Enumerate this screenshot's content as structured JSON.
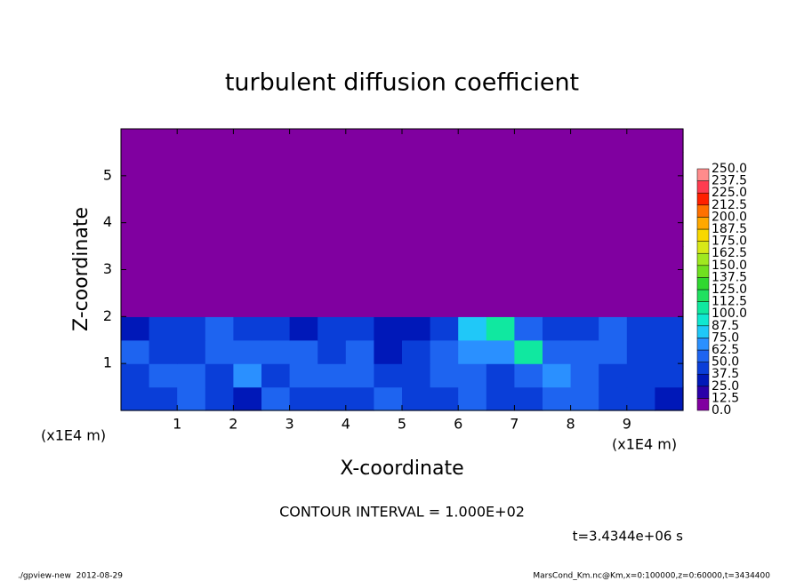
{
  "chart_data": {
    "type": "contour",
    "title": "turbulent diffusion coefficient",
    "xlabel": "X-coordinate",
    "ylabel": "Z-coordinate",
    "x_unit": "(x1E4 m)",
    "y_unit": "(x1E4 m)",
    "contour_note": "CONTOUR INTERVAL = 1.000E+02",
    "time_label": "t=3.4344e+06 s",
    "footer_left": "./gpview-new  2012-08-29",
    "footer_right": "MarsCond_Km.nc@Km,x=0:100000,z=0:60000,t=3434400",
    "xlim": [
      0,
      10
    ],
    "ylim": [
      0,
      6
    ],
    "xticks": [
      1,
      2,
      3,
      4,
      5,
      6,
      7,
      8,
      9
    ],
    "yticks": [
      1,
      2,
      3,
      4,
      5
    ],
    "levels": [
      {
        "value": 0,
        "label": "0.0"
      },
      {
        "value": 12.5,
        "label": "12.5"
      },
      {
        "value": 25,
        "label": "25.0"
      },
      {
        "value": 37.5,
        "label": "37.5"
      },
      {
        "value": 50,
        "label": "50.0"
      },
      {
        "value": 62.5,
        "label": "62.5"
      },
      {
        "value": 75,
        "label": "75.0"
      },
      {
        "value": 87.5,
        "label": "87.5"
      },
      {
        "value": 100,
        "label": "100.0"
      },
      {
        "value": 112.5,
        "label": "112.5"
      },
      {
        "value": 125,
        "label": "125.0"
      },
      {
        "value": 137.5,
        "label": "137.5"
      },
      {
        "value": 150,
        "label": "150.0"
      },
      {
        "value": 162.5,
        "label": "162.5"
      },
      {
        "value": 175,
        "label": "175.0"
      },
      {
        "value": 187.5,
        "label": "187.5"
      },
      {
        "value": 200,
        "label": "200.0"
      },
      {
        "value": 212.5,
        "label": "212.5"
      },
      {
        "value": 225,
        "label": "225.0"
      },
      {
        "value": 237.5,
        "label": "237.5"
      },
      {
        "value": 250,
        "label": "250.0"
      }
    ],
    "colors": [
      "#8000a0",
      "#2a00a8",
      "#0018b8",
      "#0a3ed8",
      "#1e64f0",
      "#2a90ff",
      "#20c8f8",
      "#10e8d0",
      "#10e8a0",
      "#20e060",
      "#30d830",
      "#70e020",
      "#a0e820",
      "#d8e818",
      "#f8d800",
      "#ffa800",
      "#ff7000",
      "#ff2000",
      "#ff3c50",
      "#ff8c8c"
    ],
    "field": [
      [
        40,
        45,
        55,
        40,
        35,
        50,
        45,
        40,
        45,
        50,
        40,
        45,
        50,
        40,
        45,
        55,
        60,
        45,
        40,
        35
      ],
      [
        45,
        60,
        55,
        45,
        70,
        45,
        50,
        60,
        50,
        40,
        45,
        55,
        50,
        45,
        60,
        65,
        50,
        45,
        40,
        45
      ],
      [
        50,
        45,
        40,
        50,
        60,
        55,
        60,
        45,
        50,
        35,
        40,
        55,
        70,
        65,
        100,
        55,
        60,
        50,
        45,
        40
      ],
      [
        35,
        40,
        45,
        50,
        45,
        40,
        35,
        45,
        40,
        25,
        30,
        45,
        75,
        100,
        60,
        45,
        40,
        50,
        45,
        40
      ],
      [
        0,
        0,
        0,
        0,
        0,
        0,
        0,
        0,
        0,
        0,
        0,
        0,
        0,
        0,
        0,
        0,
        0,
        0,
        0,
        0
      ],
      [
        0,
        0,
        0,
        0,
        0,
        0,
        0,
        0,
        0,
        0,
        0,
        0,
        0,
        0,
        0,
        0,
        0,
        0,
        0,
        0
      ],
      [
        0,
        0,
        0,
        0,
        0,
        0,
        0,
        0,
        0,
        0,
        0,
        0,
        0,
        0,
        0,
        0,
        0,
        0,
        0,
        0
      ],
      [
        0,
        0,
        0,
        0,
        0,
        0,
        0,
        0,
        0,
        0,
        0,
        0,
        0,
        0,
        0,
        0,
        0,
        0,
        0,
        0
      ],
      [
        0,
        0,
        0,
        0,
        0,
        0,
        0,
        0,
        0,
        0,
        0,
        0,
        0,
        0,
        0,
        0,
        0,
        0,
        0,
        0
      ],
      [
        0,
        0,
        0,
        0,
        0,
        0,
        0,
        0,
        0,
        0,
        0,
        0,
        0,
        0,
        0,
        0,
        0,
        0,
        0,
        0
      ],
      [
        0,
        0,
        0,
        0,
        0,
        0,
        0,
        0,
        0,
        0,
        0,
        0,
        0,
        0,
        0,
        0,
        0,
        0,
        0,
        0
      ],
      [
        0,
        0,
        0,
        0,
        0,
        0,
        0,
        0,
        0,
        0,
        0,
        0,
        0,
        0,
        0,
        0,
        0,
        0,
        0,
        0
      ]
    ]
  }
}
